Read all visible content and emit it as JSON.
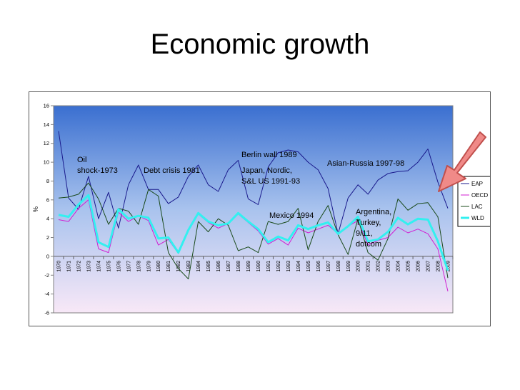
{
  "slide": {
    "title": "Economic growth"
  },
  "chart_data": {
    "type": "line",
    "title": "",
    "xlabel": "",
    "ylabel": "%",
    "ylim": [
      -6,
      16
    ],
    "yticks": [
      -6,
      -4,
      -2,
      0,
      2,
      4,
      6,
      8,
      10,
      12,
      14,
      16
    ],
    "grid": false,
    "legend_position": "right",
    "x": [
      1970,
      1971,
      1972,
      1973,
      1974,
      1975,
      1976,
      1977,
      1978,
      1979,
      1980,
      1981,
      1982,
      1983,
      1984,
      1985,
      1986,
      1987,
      1988,
      1989,
      1990,
      1991,
      1992,
      1993,
      1994,
      1995,
      1996,
      1997,
      1998,
      1999,
      2000,
      2001,
      2002,
      2003,
      2004,
      2005,
      2006,
      2007,
      2008,
      2009
    ],
    "x_tick_labels": [
      "1970",
      "1971",
      "1972",
      "1973",
      "1974",
      "1975",
      "1976",
      "1977",
      "1978",
      "1979",
      "1980",
      "1981",
      "1982",
      "1983",
      "1984",
      "1985",
      "1986",
      "1987",
      "1988",
      "1989",
      "1990",
      "1991",
      "1992",
      "1993",
      "1994",
      "1995",
      "1996",
      "1997",
      "1998",
      "1999",
      "2000",
      "2001",
      "2002",
      "2003",
      "2004",
      "2005",
      "2006",
      "2007",
      "2008",
      "2009"
    ],
    "series": [
      {
        "name": "EAP",
        "color": "#1a1a8c",
        "width": 1,
        "values": [
          13.3,
          6.2,
          5.0,
          8.5,
          4.0,
          6.8,
          3.0,
          7.6,
          9.7,
          7.1,
          7.1,
          5.6,
          6.3,
          8.5,
          9.7,
          7.6,
          6.9,
          9.2,
          10.2,
          6.1,
          5.5,
          9.5,
          11.0,
          11.3,
          11.1,
          10.0,
          9.2,
          7.2,
          2.4,
          6.2,
          7.6,
          6.6,
          8.1,
          8.8,
          9.0,
          9.1,
          10.0,
          11.4,
          7.9,
          5.1
        ]
      },
      {
        "name": "OECD",
        "color": "#d21fd2",
        "width": 1,
        "values": [
          3.9,
          3.7,
          5.1,
          6.0,
          0.8,
          0.4,
          4.7,
          3.7,
          4.3,
          3.8,
          1.2,
          1.8,
          0.3,
          2.7,
          4.5,
          3.6,
          3.0,
          3.5,
          4.5,
          3.6,
          2.7,
          1.3,
          1.9,
          1.2,
          3.0,
          2.5,
          2.9,
          3.3,
          2.4,
          3.2,
          3.8,
          1.2,
          1.7,
          2.0,
          3.1,
          2.5,
          2.9,
          2.4,
          0.8,
          -3.7
        ]
      },
      {
        "name": "LAC",
        "color": "#1a4a1a",
        "width": 1,
        "values": [
          6.2,
          6.3,
          6.6,
          7.8,
          6.1,
          3.4,
          5.1,
          4.8,
          3.4,
          7.1,
          6.4,
          0.4,
          -1.3,
          -2.4,
          3.7,
          2.6,
          4.0,
          3.3,
          0.6,
          1.0,
          0.4,
          3.7,
          3.4,
          3.7,
          5.1,
          0.7,
          3.7,
          5.4,
          2.3,
          0.2,
          4.0,
          0.4,
          -0.4,
          1.9,
          6.1,
          4.9,
          5.6,
          5.7,
          4.2,
          -2.3
        ]
      },
      {
        "name": "WLD",
        "color": "#33f0f0",
        "width": 3,
        "values": [
          4.4,
          4.2,
          5.5,
          6.5,
          1.5,
          1.0,
          5.0,
          4.0,
          4.3,
          4.1,
          1.9,
          2.0,
          0.4,
          2.8,
          4.6,
          3.7,
          3.3,
          3.5,
          4.6,
          3.7,
          2.9,
          1.5,
          2.1,
          1.7,
          3.3,
          2.9,
          3.3,
          3.6,
          2.4,
          3.2,
          4.2,
          1.6,
          1.8,
          2.6,
          4.1,
          3.4,
          4.0,
          3.9,
          1.6,
          -1.5
        ]
      }
    ],
    "annotations": [
      {
        "id": "oil",
        "lines": [
          "Oil",
          "shock-1973"
        ]
      },
      {
        "id": "debt",
        "lines": [
          "Debt crisis 1981"
        ]
      },
      {
        "id": "berlin",
        "lines": [
          "Berlin wall 1989"
        ]
      },
      {
        "id": "japan",
        "lines": [
          "Japan, Nordic,",
          "S&L US 1991-93"
        ]
      },
      {
        "id": "mexico",
        "lines": [
          "Mexico 1994"
        ]
      },
      {
        "id": "asia",
        "lines": [
          "Asian-Russia 1997-98"
        ]
      },
      {
        "id": "argentina",
        "lines": [
          "Argentina,",
          "Turkey,",
          "9/11,",
          "dotcom"
        ]
      }
    ]
  }
}
